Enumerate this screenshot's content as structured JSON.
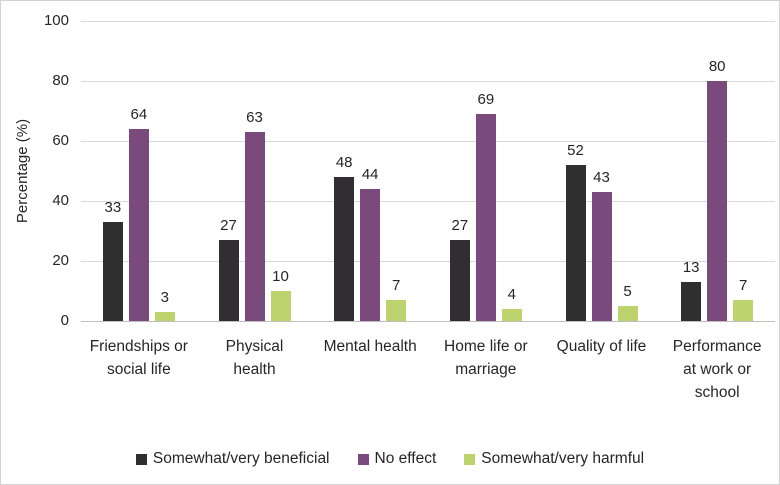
{
  "chart_data": {
    "type": "bar",
    "title": "",
    "ylabel": "Percentage (%)",
    "xlabel": "",
    "ylim": [
      0,
      100
    ],
    "yticks": [
      0,
      20,
      40,
      60,
      80,
      100
    ],
    "grid": true,
    "legend_position": "bottom",
    "categories": [
      "Friendships or\nsocial life",
      "Physical\nhealth",
      "Mental health",
      "Home life or\nmarriage",
      "Quality of life",
      "Performance\nat work or\nschool"
    ],
    "series": [
      {
        "name": "Somewhat/very beneficial",
        "color": "#302e30",
        "values": [
          33,
          27,
          48,
          27,
          52,
          13
        ]
      },
      {
        "name": "No effect",
        "color": "#7a4a7c",
        "values": [
          64,
          63,
          44,
          69,
          43,
          80
        ]
      },
      {
        "name": "Somewhat/very harmful",
        "color": "#bcd36e",
        "values": [
          3,
          10,
          7,
          4,
          5,
          7
        ]
      }
    ],
    "colors": {
      "gridline": "#d9d9d9",
      "axis_line": "#bfbfbf",
      "text": "#262626",
      "border": "#d2d2d2"
    }
  }
}
